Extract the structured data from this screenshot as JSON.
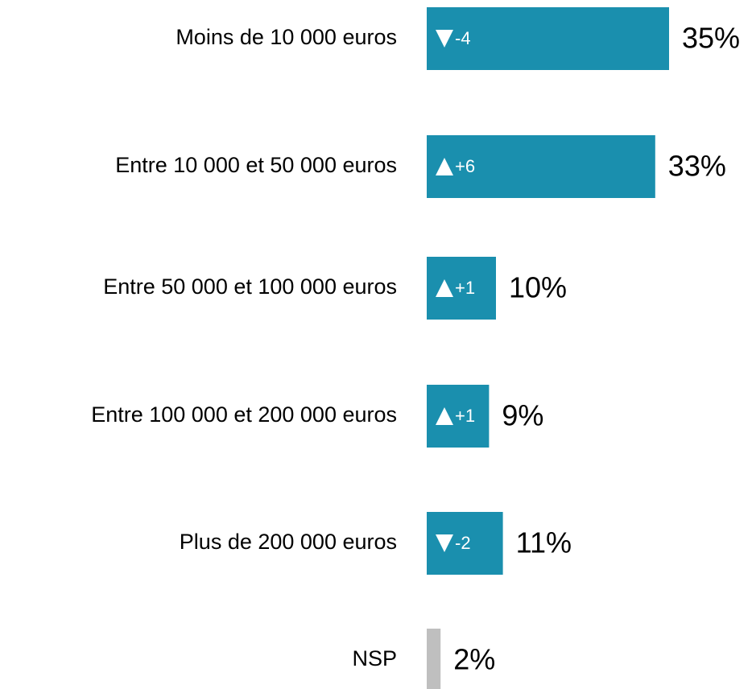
{
  "chart_data": {
    "type": "bar",
    "orientation": "horizontal",
    "categories": [
      "Moins de 10 000 euros",
      "Entre 10 000 et 50 000 euros",
      "Entre 50 000 et 100 000 euros",
      "Entre 100 000 et 200 000 euros",
      "Plus de 200 000 euros",
      "NSP"
    ],
    "values": [
      35,
      33,
      10,
      9,
      11,
      2
    ],
    "value_labels": [
      "35%",
      "33%",
      "10%",
      "9%",
      "11%",
      "2%"
    ],
    "changes": [
      -4,
      6,
      1,
      1,
      -2,
      null
    ],
    "change_labels": [
      "-4",
      "+6",
      "+1",
      "+1",
      "-2",
      null
    ],
    "colors": [
      "#1a8fae",
      "#1a8fae",
      "#1a8fae",
      "#1a8fae",
      "#1a8fae",
      "#bfbfbf"
    ]
  }
}
